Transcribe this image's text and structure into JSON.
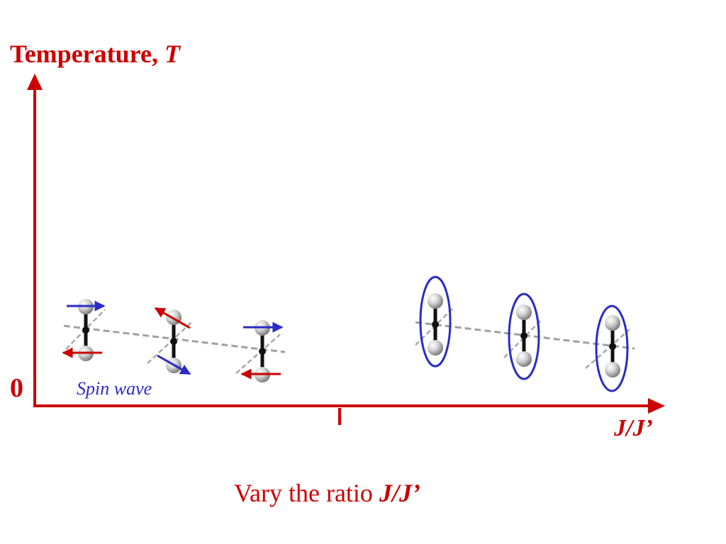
{
  "diagram": {
    "y_axis": {
      "label": "Temperature, ",
      "symbol": "T",
      "origin_label": "0"
    },
    "x_axis": {
      "label": "J/J’"
    },
    "annotation": "Spin wave",
    "caption": {
      "text": "Vary the ratio ",
      "emphasis": "J/J’"
    }
  },
  "colors": {
    "axis": "#cc0000",
    "text_red": "#cc0000",
    "text_blue": "#2b2bc8",
    "spin_up_arrow": "#2b2bc8",
    "spin_down_arrow": "#cc0000",
    "singlet_ellipse": "#2b2bc8",
    "chain_line": "#a0a0a0",
    "bond": "#111111",
    "atom": "#b8b8b8"
  },
  "icons": {
    "dimer": "dimer-molecule-icon",
    "spin_arrow": "arrow-icon",
    "singlet": "ellipse-outline-icon"
  }
}
